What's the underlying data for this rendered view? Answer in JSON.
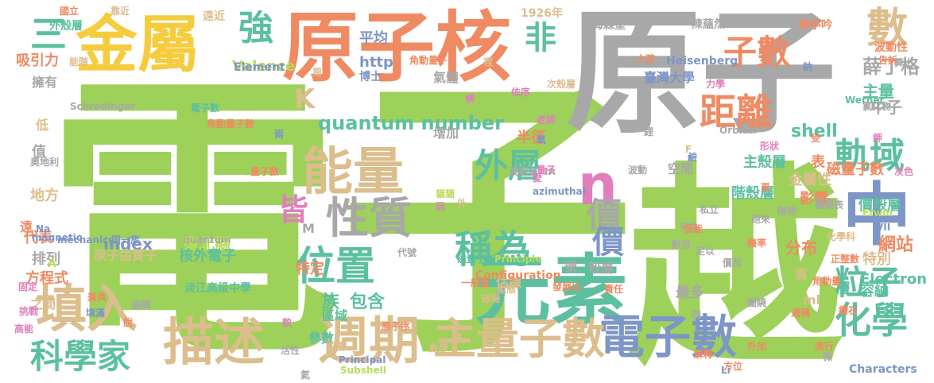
{
  "palette": {
    "green": "#9dd15a",
    "gray": "#a8a8a8",
    "orange": "#f08a62",
    "teal": "#5cc0a0",
    "yellow": "#f5cc3e",
    "tan": "#dcbd8c",
    "steel": "#7d95c7",
    "pink": "#e07fbc",
    "lime": "#b7dd55"
  },
  "words": [
    {
      "text": "電子",
      "color": "green"
    },
    {
      "text": "原子",
      "color": "gray"
    },
    {
      "text": "越",
      "color": "green"
    },
    {
      "text": "原子核",
      "color": "orange"
    },
    {
      "text": "元素",
      "color": "teal"
    },
    {
      "text": "金屬",
      "color": "yellow"
    },
    {
      "text": "能量",
      "color": "tan"
    },
    {
      "text": "週期",
      "color": "tan"
    },
    {
      "text": "描述",
      "color": "tan"
    },
    {
      "text": "填入",
      "color": "tan"
    },
    {
      "text": "電子數",
      "color": "steel"
    },
    {
      "text": "主量子數",
      "color": "tan"
    },
    {
      "text": "性質",
      "color": "gray"
    },
    {
      "text": "中",
      "color": "steel"
    },
    {
      "text": "科學家",
      "color": "teal"
    },
    {
      "text": "稱為",
      "color": "teal"
    },
    {
      "text": "位置",
      "color": "teal"
    },
    {
      "text": "軌域",
      "color": "teal"
    },
    {
      "text": "粒子",
      "color": "teal"
    },
    {
      "text": "化學",
      "color": "teal"
    },
    {
      "text": "距離",
      "color": "orange"
    },
    {
      "text": "子數",
      "color": "orange"
    },
    {
      "text": "數",
      "color": "tan"
    },
    {
      "text": "強",
      "color": "teal"
    },
    {
      "text": "三",
      "color": "teal"
    },
    {
      "text": "非",
      "color": "teal"
    },
    {
      "text": "n",
      "color": "pink"
    },
    {
      "text": "外層",
      "color": "teal"
    },
    {
      "text": "價",
      "color": "gray"
    },
    {
      "text": "價",
      "color": "steel"
    },
    {
      "text": "皆",
      "color": "pink"
    },
    {
      "text": "K",
      "color": "tan"
    },
    {
      "text": "quantum number",
      "color": "teal"
    },
    {
      "text": "Valence",
      "color": "lime"
    },
    {
      "text": "http",
      "color": "steel"
    },
    {
      "text": "平均",
      "color": "steel"
    },
    {
      "text": "氣體",
      "color": "gray"
    },
    {
      "text": "吸引力",
      "color": "orange"
    },
    {
      "text": "擁有",
      "color": "gray"
    },
    {
      "text": "增加",
      "color": "gray"
    },
    {
      "text": "半徑",
      "color": "orange"
    },
    {
      "text": "族",
      "color": "teal"
    },
    {
      "text": "包含",
      "color": "teal"
    },
    {
      "text": "估據",
      "color": "tan"
    },
    {
      "text": "特定",
      "color": "orange"
    },
    {
      "text": "index",
      "color": "steel"
    },
    {
      "text": "臺北縣",
      "color": "lime"
    },
    {
      "text": "核外電子",
      "color": "teal"
    },
    {
      "text": "原子由質子",
      "color": "tan"
    },
    {
      "text": "淡江高級中學",
      "color": "teal"
    },
    {
      "text": "薛丁格",
      "color": "gray"
    },
    {
      "text": "主量",
      "color": "teal"
    },
    {
      "text": "中子",
      "color": "gray"
    },
    {
      "text": "shell",
      "color": "teal"
    },
    {
      "text": "表",
      "color": "orange"
    },
    {
      "text": "主殼層",
      "color": "teal"
    },
    {
      "text": "階殼層",
      "color": "teal"
    },
    {
      "text": "空間",
      "color": "gray"
    },
    {
      "text": "磁量子數",
      "color": "orange"
    },
    {
      "text": "價殼層",
      "color": "teal"
    },
    {
      "text": "金屬性",
      "color": "tan"
    },
    {
      "text": "影響",
      "color": "orange"
    },
    {
      "text": "網站",
      "color": "orange"
    },
    {
      "text": "分布",
      "color": "orange"
    },
    {
      "text": "特別",
      "color": "tan"
    },
    {
      "text": "Electron",
      "color": "teal"
    },
    {
      "text": "層",
      "color": "teal"
    },
    {
      "text": "容納",
      "color": "teal"
    },
    {
      "text": "Characters",
      "color": "steel"
    },
    {
      "text": "殼層",
      "color": "gray"
    },
    {
      "text": "號",
      "color": "gray"
    },
    {
      "text": "最多",
      "color": "gray"
    },
    {
      "text": "ml",
      "color": "tan"
    },
    {
      "text": "高",
      "color": "tan"
    },
    {
      "text": "區域",
      "color": "teal"
    },
    {
      "text": "參數",
      "color": "teal"
    },
    {
      "text": "Configuration",
      "color": "orange"
    },
    {
      "text": "排列",
      "color": "gray"
    },
    {
      "text": "方程式",
      "color": "orange"
    },
    {
      "text": "代表",
      "color": "orange"
    },
    {
      "text": "地方",
      "color": "tan"
    },
    {
      "text": "值",
      "color": "gray"
    },
    {
      "text": "低",
      "color": "tan"
    },
    {
      "text": "之間",
      "color": "tan"
    },
    {
      "text": "遠",
      "color": "orange"
    },
    {
      "text": "M",
      "color": "gray"
    },
    {
      "text": "A",
      "color": "lime"
    },
    {
      "text": "Heisenberg",
      "color": "steel"
    },
    {
      "text": "臺灣大學",
      "color": "steel"
    },
    {
      "text": "Element",
      "color": "steel"
    },
    {
      "text": "能階",
      "color": "tan"
    },
    {
      "text": "國立",
      "color": "orange"
    },
    {
      "text": "靠近",
      "color": "tan"
    },
    {
      "text": "外殼層",
      "color": "teal"
    },
    {
      "text": "遠近",
      "color": "tan"
    },
    {
      "text": "1926年",
      "color": "tan"
    },
    {
      "text": "海森堡",
      "color": "gray"
    },
    {
      "text": "陳蘊然",
      "color": "gray"
    },
    {
      "text": "賴亭吟",
      "color": "orange"
    },
    {
      "text": "波動性",
      "color": "orange"
    },
    {
      "text": "告訴",
      "color": "orange"
    },
    {
      "text": "算出",
      "color": "gray"
    },
    {
      "text": "Schrodinger",
      "color": "gray"
    },
    {
      "text": "博士",
      "color": "steel"
    },
    {
      "text": "角動量子",
      "color": "orange"
    },
    {
      "text": "電子數",
      "color": "teal"
    },
    {
      "text": "角動量子數",
      "color": "orange"
    },
    {
      "text": "mechanics",
      "color": "steel"
    },
    {
      "text": "同一族",
      "color": "steel"
    },
    {
      "text": "quantum",
      "color": "gray"
    },
    {
      "text": "量子數",
      "color": "orange"
    },
    {
      "text": "magnetic",
      "color": "steel"
    },
    {
      "text": "奧地利",
      "color": "gray"
    },
    {
      "text": "磁量子",
      "color": "teal"
    },
    {
      "text": "Principle",
      "color": "lime"
    },
    {
      "text": "Principal",
      "color": "steel"
    },
    {
      "text": "Subshell",
      "color": "lime"
    },
    {
      "text": "Orbital",
      "color": "gray"
    },
    {
      "text": "Werner",
      "color": "teal"
    },
    {
      "text": "azimuthal",
      "color": "steel"
    },
    {
      "text": "Erwin",
      "color": "lime"
    },
    {
      "text": "化學科",
      "color": "tan"
    },
    {
      "text": "正整數",
      "color": "orange"
    },
    {
      "text": "圍繞",
      "color": "gray"
    },
    {
      "text": "磁場",
      "color": "tan"
    },
    {
      "text": "責任",
      "color": "orange"
    },
    {
      "text": "氦",
      "color": "gray"
    },
    {
      "text": "組態",
      "color": "tan"
    },
    {
      "text": "一般層",
      "color": "orange"
    },
    {
      "text": "發展出",
      "color": "orange"
    },
    {
      "text": "原子序",
      "color": "orange"
    },
    {
      "text": "數目",
      "color": "gray"
    },
    {
      "text": "階梯",
      "color": "gray"
    },
    {
      "text": "波動",
      "color": "gray"
    },
    {
      "text": "私立",
      "color": "gray"
    },
    {
      "text": "機率",
      "color": "orange"
    },
    {
      "text": "形狀",
      "color": "pink"
    },
    {
      "text": "力學",
      "color": "pink"
    },
    {
      "text": "老師",
      "color": "pink"
    },
    {
      "text": "挑戰",
      "color": "pink"
    },
    {
      "text": "高能",
      "color": "pink"
    },
    {
      "text": "灰色",
      "color": "pink"
    },
    {
      "text": "依序",
      "color": "pink"
    },
    {
      "text": "固定",
      "color": "pink"
    },
    {
      "text": "Na",
      "color": "steel"
    },
    {
      "text": "IA",
      "color": "gray"
    },
    {
      "text": "VII",
      "color": "steel"
    },
    {
      "text": "Li",
      "color": "steel"
    },
    {
      "text": "F",
      "color": "tan"
    },
    {
      "text": "周",
      "color": "tan"
    },
    {
      "text": "兩",
      "color": "steel"
    },
    {
      "text": "頁",
      "color": "orange"
    },
    {
      "text": "鈉",
      "color": "steel"
    },
    {
      "text": "鉀",
      "color": "pink"
    },
    {
      "text": "鋰",
      "color": "gray"
    },
    {
      "text": "鹼",
      "color": "steel"
    },
    {
      "text": "氯化物",
      "color": "gray"
    },
    {
      "text": "價和",
      "color": "gray"
    },
    {
      "text": "週期表",
      "color": "gray"
    },
    {
      "text": "列為",
      "color": "gray"
    },
    {
      "text": "跑來",
      "color": "gray"
    },
    {
      "text": "跑去",
      "color": "gray"
    },
    {
      "text": "鑽石",
      "color": "orange"
    },
    {
      "text": "說",
      "color": "orange"
    },
    {
      "text": "編輯",
      "color": "gray"
    },
    {
      "text": "能量",
      "color": "tan"
    },
    {
      "text": "活性",
      "color": "gray"
    },
    {
      "text": "代號",
      "color": "gray"
    },
    {
      "text": "波組合",
      "color": "gray"
    },
    {
      "text": "角動量",
      "color": "orange"
    },
    {
      "text": "進行",
      "color": "orange"
    },
    {
      "text": "通稱",
      "color": "orange"
    },
    {
      "text": "方位",
      "color": "orange"
    },
    {
      "text": "外加",
      "color": "orange"
    },
    {
      "text": "解釋",
      "color": "orange"
    },
    {
      "text": "微",
      "color": "gray"
    },
    {
      "text": "受",
      "color": "orange"
    },
    {
      "text": "兼具",
      "color": "orange"
    },
    {
      "text": "填滿",
      "color": "steel"
    },
    {
      "text": "貓貓",
      "color": "lime"
    },
    {
      "text": "玩",
      "color": "pink"
    },
    {
      "text": "橫",
      "color": "pink"
    },
    {
      "text": "愛",
      "color": "pink"
    },
    {
      "text": "外",
      "color": "tan"
    },
    {
      "text": "四",
      "color": "gray"
    },
    {
      "text": "足以",
      "color": "gray"
    },
    {
      "text": "須",
      "color": "gray"
    },
    {
      "text": "低能",
      "color": "orange"
    },
    {
      "text": "小孩",
      "color": "orange"
    },
    {
      "text": "次殼層",
      "color": "tan"
    },
    {
      "text": "量子",
      "color": "pink"
    },
    {
      "text": "氧",
      "color": "steel"
    },
    {
      "text": "裡",
      "color": "tan"
    },
    {
      "text": "軟",
      "color": "pink"
    },
    {
      "text": "數學",
      "color": "tan"
    },
    {
      "text": "族",
      "color": "tan"
    }
  ]
}
